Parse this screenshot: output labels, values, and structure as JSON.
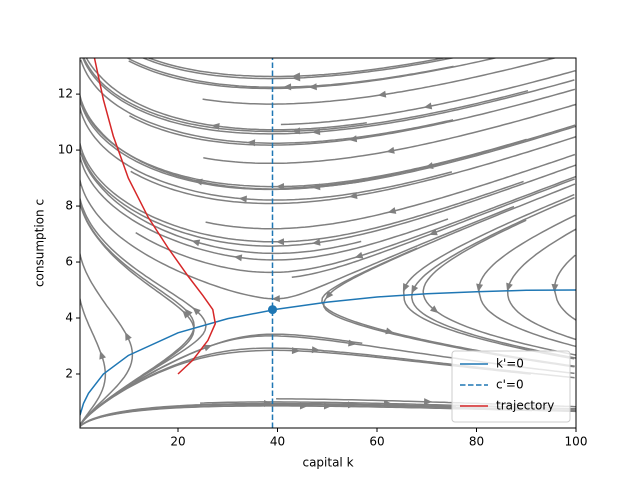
{
  "chart_data": {
    "type": "line",
    "xlabel": "capital k",
    "ylabel": "consumption c",
    "xlim": [
      0.3,
      100
    ],
    "ylim": [
      0.07,
      13.29
    ],
    "xticks": [
      20,
      40,
      60,
      80,
      100
    ],
    "yticks": [
      2,
      4,
      6,
      8,
      10,
      12
    ],
    "legend": "lower right",
    "series": [
      {
        "name": "k'=0",
        "color": "#1f77b4",
        "style": "solid",
        "x": [
          0.3,
          1,
          2,
          5,
          10,
          20,
          30,
          40,
          50,
          60,
          70,
          80,
          90,
          100
        ],
        "values": [
          0.53,
          0.95,
          1.31,
          2.0,
          2.66,
          3.47,
          3.98,
          4.32,
          4.57,
          4.75,
          4.87,
          4.94,
          4.99,
          5.0
        ]
      },
      {
        "name": "c'=0",
        "color": "#1f77b4",
        "style": "dashed",
        "x": [
          39,
          39
        ],
        "values": [
          0.07,
          13.29
        ]
      },
      {
        "name": "trajectory",
        "color": "#d62728",
        "style": "solid",
        "x": [
          20,
          23,
          26,
          27.5,
          27,
          25,
          22,
          18,
          14,
          10,
          7,
          5,
          3.2
        ],
        "values": [
          2.0,
          2.5,
          3.2,
          3.8,
          4.3,
          4.8,
          5.5,
          6.5,
          7.6,
          9.0,
          10.5,
          11.8,
          13.3
        ]
      }
    ],
    "points": [
      {
        "x": 39,
        "y": 4.3,
        "color": "#1f77b4"
      }
    ]
  }
}
